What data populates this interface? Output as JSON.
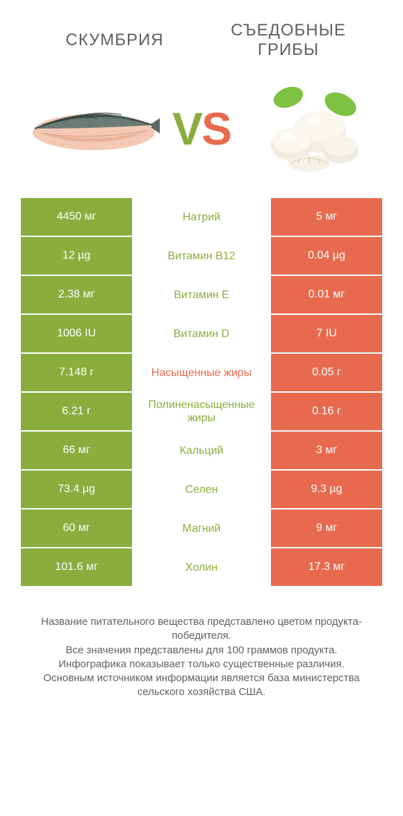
{
  "colors": {
    "green": "#8aad3e",
    "orange": "#e86a4e",
    "text": "#5f5f5f",
    "white": "#ffffff"
  },
  "header": {
    "left": "СКУМБРИЯ",
    "right": "СЪЕДОБНЫЕ ГРИБЫ"
  },
  "vs": {
    "v": "V",
    "s": "S"
  },
  "rows": [
    {
      "left": "4450 мг",
      "mid": "Натрий",
      "right": "5 мг",
      "winner": "left"
    },
    {
      "left": "12 µg",
      "mid": "Витамин B12",
      "right": "0.04 µg",
      "winner": "left"
    },
    {
      "left": "2.38 мг",
      "mid": "Витамин E",
      "right": "0.01 мг",
      "winner": "left"
    },
    {
      "left": "1006 IU",
      "mid": "Витамин D",
      "right": "7 IU",
      "winner": "left"
    },
    {
      "left": "7.148 г",
      "mid": "Насыщенные жиры",
      "right": "0.05 г",
      "winner": "right"
    },
    {
      "left": "6.21 г",
      "mid": "Полиненасыщенные жиры",
      "right": "0.16 г",
      "winner": "left"
    },
    {
      "left": "66 мг",
      "mid": "Кальций",
      "right": "3 мг",
      "winner": "left"
    },
    {
      "left": "73.4 µg",
      "mid": "Селен",
      "right": "9.3 µg",
      "winner": "left"
    },
    {
      "left": "60 мг",
      "mid": "Магний",
      "right": "9 мг",
      "winner": "left"
    },
    {
      "left": "101.6 мг",
      "mid": "Холин",
      "right": "17.3 мг",
      "winner": "left"
    }
  ],
  "footer": {
    "line1": "Название питательного вещества представлено цветом продукта-победителя.",
    "line2": "Все значения представлены для 100 граммов продукта.",
    "line3": "Инфографика показывает только существенные различия.",
    "line4": "Основным источником информации является база министерства сельского хозяйства США."
  }
}
